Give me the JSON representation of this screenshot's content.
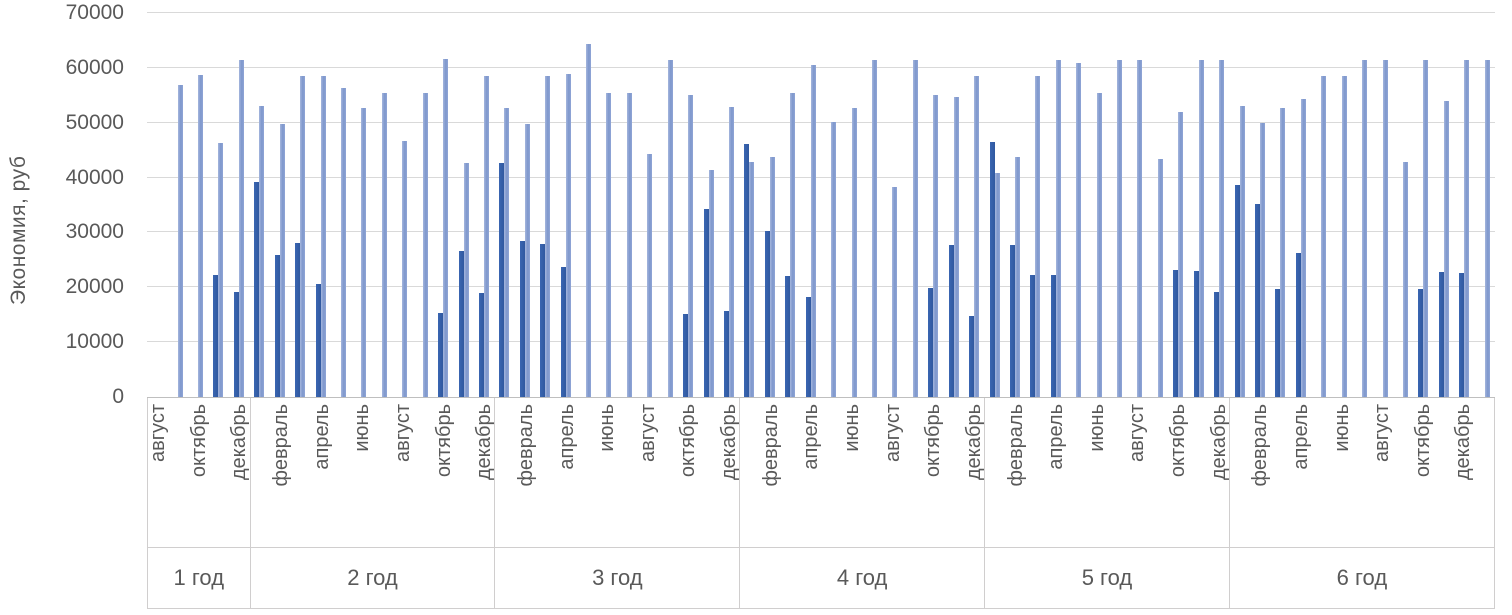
{
  "chart_data": {
    "type": "bar",
    "title": "",
    "ylabel": "Экономия, руб",
    "xlabel": "",
    "ylim": [
      0,
      70000
    ],
    "ytick_step": 10000,
    "ytick_labels": [
      "0",
      "10000",
      "20000",
      "30000",
      "40000",
      "50000",
      "60000",
      "70000"
    ],
    "grid": "horizontal",
    "legend": "none",
    "series_meta": [
      {
        "name": "dark-blue-series",
        "color": "#3660AC"
      },
      {
        "name": "light-blue-series",
        "color": "#8CA2D6"
      }
    ],
    "note": "months with empty label are unlabeled tick positions; dark=0 means no dark bar drawn",
    "years": [
      {
        "label": "1 год",
        "months": [
          {
            "label": "август",
            "dark": 0,
            "light": 0
          },
          {
            "label": "",
            "dark": 0,
            "light": 56800
          },
          {
            "label": "октябрь",
            "dark": 0,
            "light": 58700
          },
          {
            "label": "",
            "dark": 22300,
            "light": 46300
          },
          {
            "label": "декабрь",
            "dark": 19200,
            "light": 61400
          }
        ]
      },
      {
        "label": "2 год",
        "months": [
          {
            "label": "",
            "dark": 39200,
            "light": 53000
          },
          {
            "label": "февраль",
            "dark": 25900,
            "light": 49800
          },
          {
            "label": "",
            "dark": 28100,
            "light": 58600
          },
          {
            "label": "апрель",
            "dark": 20600,
            "light": 58600
          },
          {
            "label": "",
            "dark": 0,
            "light": 56300
          },
          {
            "label": "июнь",
            "dark": 0,
            "light": 52700
          },
          {
            "label": "",
            "dark": 0,
            "light": 55400
          },
          {
            "label": "август",
            "dark": 0,
            "light": 46700
          },
          {
            "label": "",
            "dark": 0,
            "light": 55400
          },
          {
            "label": "октябрь",
            "dark": 15400,
            "light": 61700
          },
          {
            "label": "",
            "dark": 26700,
            "light": 42600
          },
          {
            "label": "декабрь",
            "dark": 19000,
            "light": 58500
          }
        ]
      },
      {
        "label": "3 год",
        "months": [
          {
            "label": "",
            "dark": 42700,
            "light": 52600
          },
          {
            "label": "февраль",
            "dark": 28500,
            "light": 49800
          },
          {
            "label": "",
            "dark": 27900,
            "light": 58500
          },
          {
            "label": "апрель",
            "dark": 23700,
            "light": 58800
          },
          {
            "label": "",
            "dark": 0,
            "light": 64400
          },
          {
            "label": "июнь",
            "dark": 0,
            "light": 55400
          },
          {
            "label": "",
            "dark": 0,
            "light": 55400
          },
          {
            "label": "август",
            "dark": 0,
            "light": 44300
          },
          {
            "label": "",
            "dark": 0,
            "light": 61500
          },
          {
            "label": "октябрь",
            "dark": 15100,
            "light": 55100
          },
          {
            "label": "",
            "dark": 34300,
            "light": 41300
          },
          {
            "label": "декабрь",
            "dark": 15600,
            "light": 52800
          }
        ]
      },
      {
        "label": "4 год",
        "months": [
          {
            "label": "",
            "dark": 46200,
            "light": 42800
          },
          {
            "label": "февраль",
            "dark": 30300,
            "light": 43700
          },
          {
            "label": "",
            "dark": 22000,
            "light": 55500
          },
          {
            "label": "апрель",
            "dark": 18300,
            "light": 60600
          },
          {
            "label": "",
            "dark": 0,
            "light": 50100
          },
          {
            "label": "июнь",
            "dark": 0,
            "light": 52600
          },
          {
            "label": "",
            "dark": 0,
            "light": 61500
          },
          {
            "label": "август",
            "dark": 0,
            "light": 38300
          },
          {
            "label": "",
            "dark": 0,
            "light": 61500
          },
          {
            "label": "октябрь",
            "dark": 19900,
            "light": 55100
          },
          {
            "label": "",
            "dark": 27700,
            "light": 54600
          },
          {
            "label": "декабрь",
            "dark": 14800,
            "light": 58500
          }
        ]
      },
      {
        "label": "5 год",
        "months": [
          {
            "label": "",
            "dark": 46400,
            "light": 40900
          },
          {
            "label": "февраль",
            "dark": 27700,
            "light": 43800
          },
          {
            "label": "",
            "dark": 22300,
            "light": 58500
          },
          {
            "label": "апрель",
            "dark": 22300,
            "light": 61500
          },
          {
            "label": "",
            "dark": 0,
            "light": 60800
          },
          {
            "label": "июнь",
            "dark": 0,
            "light": 55500
          },
          {
            "label": "",
            "dark": 0,
            "light": 61500
          },
          {
            "label": "август",
            "dark": 0,
            "light": 61500
          },
          {
            "label": "",
            "dark": 0,
            "light": 43400
          },
          {
            "label": "октябрь",
            "dark": 23100,
            "light": 51900
          },
          {
            "label": "",
            "dark": 23000,
            "light": 61500
          },
          {
            "label": "декабрь",
            "dark": 19200,
            "light": 61500
          }
        ]
      },
      {
        "label": "6 год",
        "months": [
          {
            "label": "",
            "dark": 38700,
            "light": 53100
          },
          {
            "label": "февраль",
            "dark": 35100,
            "light": 49900
          },
          {
            "label": "",
            "dark": 19700,
            "light": 52600
          },
          {
            "label": "апрель",
            "dark": 26300,
            "light": 54300
          },
          {
            "label": "",
            "dark": 0,
            "light": 58500
          },
          {
            "label": "июнь",
            "dark": 0,
            "light": 58500
          },
          {
            "label": "",
            "dark": 0,
            "light": 61500
          },
          {
            "label": "август",
            "dark": 0,
            "light": 61500
          },
          {
            "label": "",
            "dark": 0,
            "light": 42800
          },
          {
            "label": "октябрь",
            "dark": 19600,
            "light": 61500
          },
          {
            "label": "",
            "dark": 22800,
            "light": 53900
          },
          {
            "label": "декабрь",
            "dark": 22600,
            "light": 61500
          },
          {
            "label": "",
            "dark": 0,
            "light": 61500
          }
        ]
      }
    ]
  },
  "palette": {
    "dark_bar": "#3660AC",
    "light_bar": "#8CA2D6",
    "gridline": "#D9D9D9",
    "axis_line": "#BFBFBF",
    "band_line": "#D0CECE",
    "text": "#595959",
    "background": "#FFFFFF"
  }
}
